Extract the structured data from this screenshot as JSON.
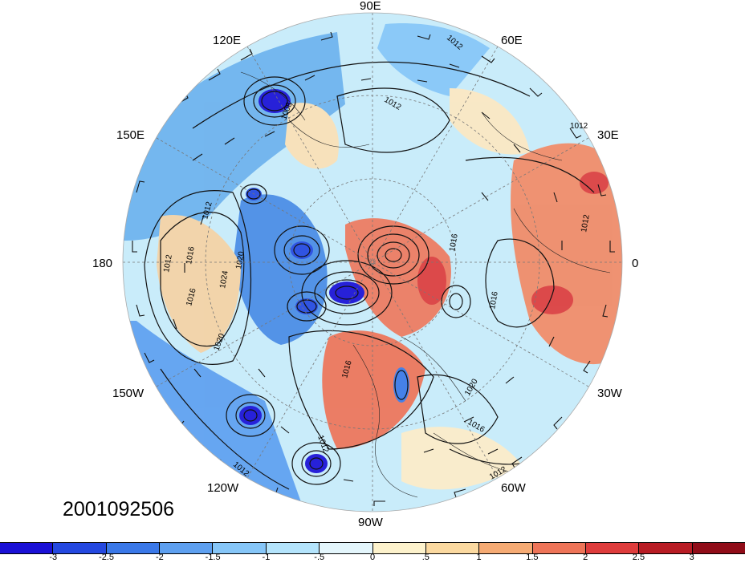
{
  "timestamp": "2001092506",
  "longitude_labels": {
    "lon_90e": "90E",
    "lon_60e": "60E",
    "lon_120e": "120E",
    "lon_150e": "150E",
    "lon_30e": "30E",
    "lon_180": "180",
    "lon_0": "0",
    "lon_150w": "150W",
    "lon_30w": "30W",
    "lon_120w": "120W",
    "lon_60w": "60W",
    "lon_90w": "90W"
  },
  "contour_labels": [
    "1012",
    "1012",
    "1012",
    "1008",
    "1012",
    "1016",
    "1024",
    "1020",
    "1012",
    "1016",
    "1016",
    "1020",
    "1016",
    "1020",
    "1016",
    "1012",
    "1016",
    "1012",
    "1012",
    "1012"
  ],
  "colorbar": {
    "ticks": [
      "-3",
      "-2.5",
      "-2",
      "-1.5",
      "-1",
      "-.5",
      "0",
      ".5",
      "1",
      "1.5",
      "2",
      "2.5",
      "3"
    ],
    "colors": [
      "#1a10d6",
      "#2448e0",
      "#3a78e8",
      "#5ea0f0",
      "#86c6f8",
      "#b4e4fc",
      "#e4f6fc",
      "#fdf2cc",
      "#fbd9a0",
      "#f6ab74",
      "#ee7458",
      "#de3c3c",
      "#b81c24",
      "#900c18"
    ]
  }
}
